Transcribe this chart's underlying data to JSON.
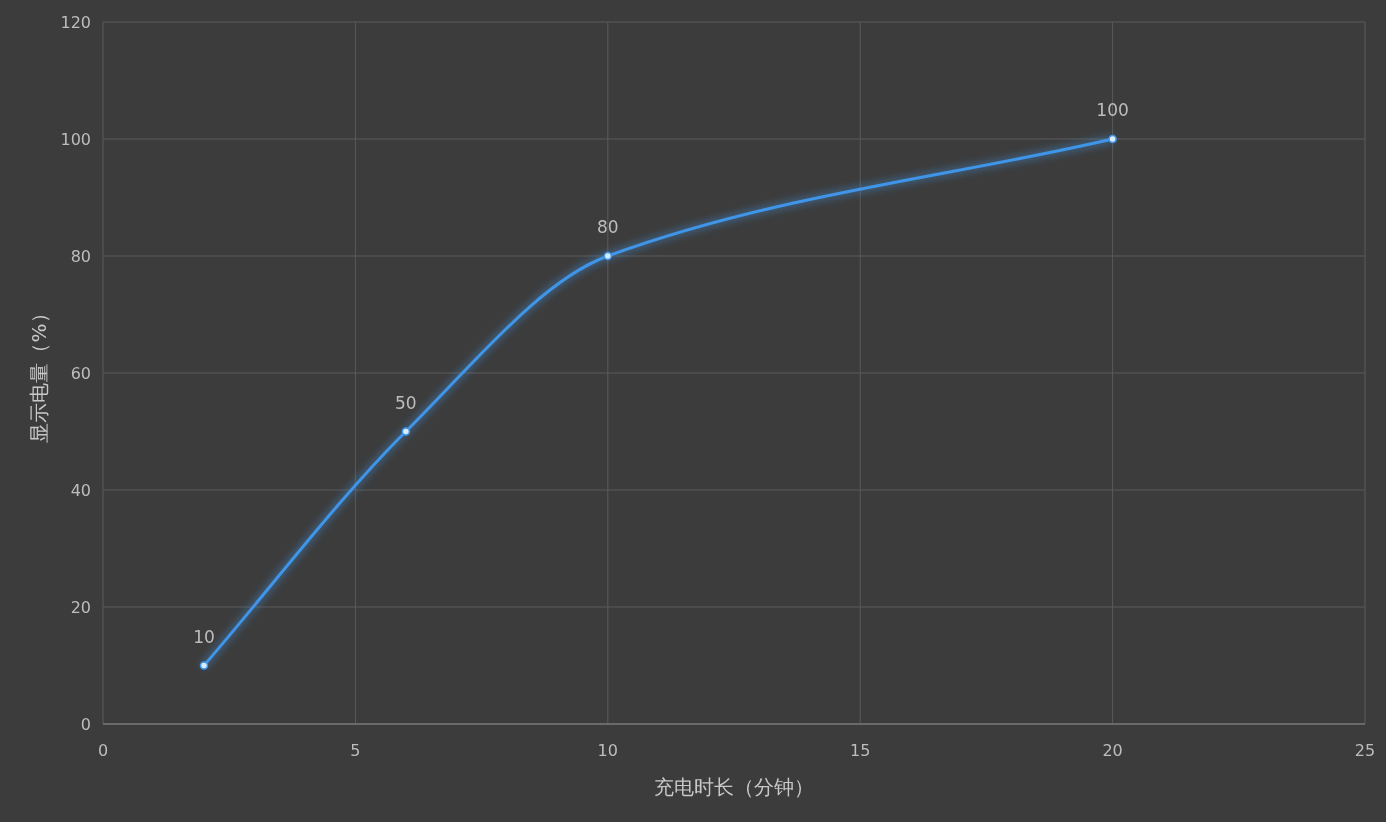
{
  "chart_data": {
    "type": "line",
    "xlabel": "充电时长（分钟）",
    "ylabel": "显示电量（%）",
    "x": [
      2,
      6,
      10,
      20
    ],
    "series": [
      {
        "color": "#3f95e8",
        "values": [
          10,
          50,
          80,
          100
        ]
      }
    ],
    "xlim": [
      0,
      25
    ],
    "xticks": [
      0,
      5,
      10,
      15,
      20,
      25
    ],
    "ylim": [
      0,
      120
    ],
    "yticks": [
      0,
      20,
      40,
      60,
      80,
      100,
      120
    ],
    "grid": true,
    "data_labels": true,
    "marker": "circle"
  }
}
